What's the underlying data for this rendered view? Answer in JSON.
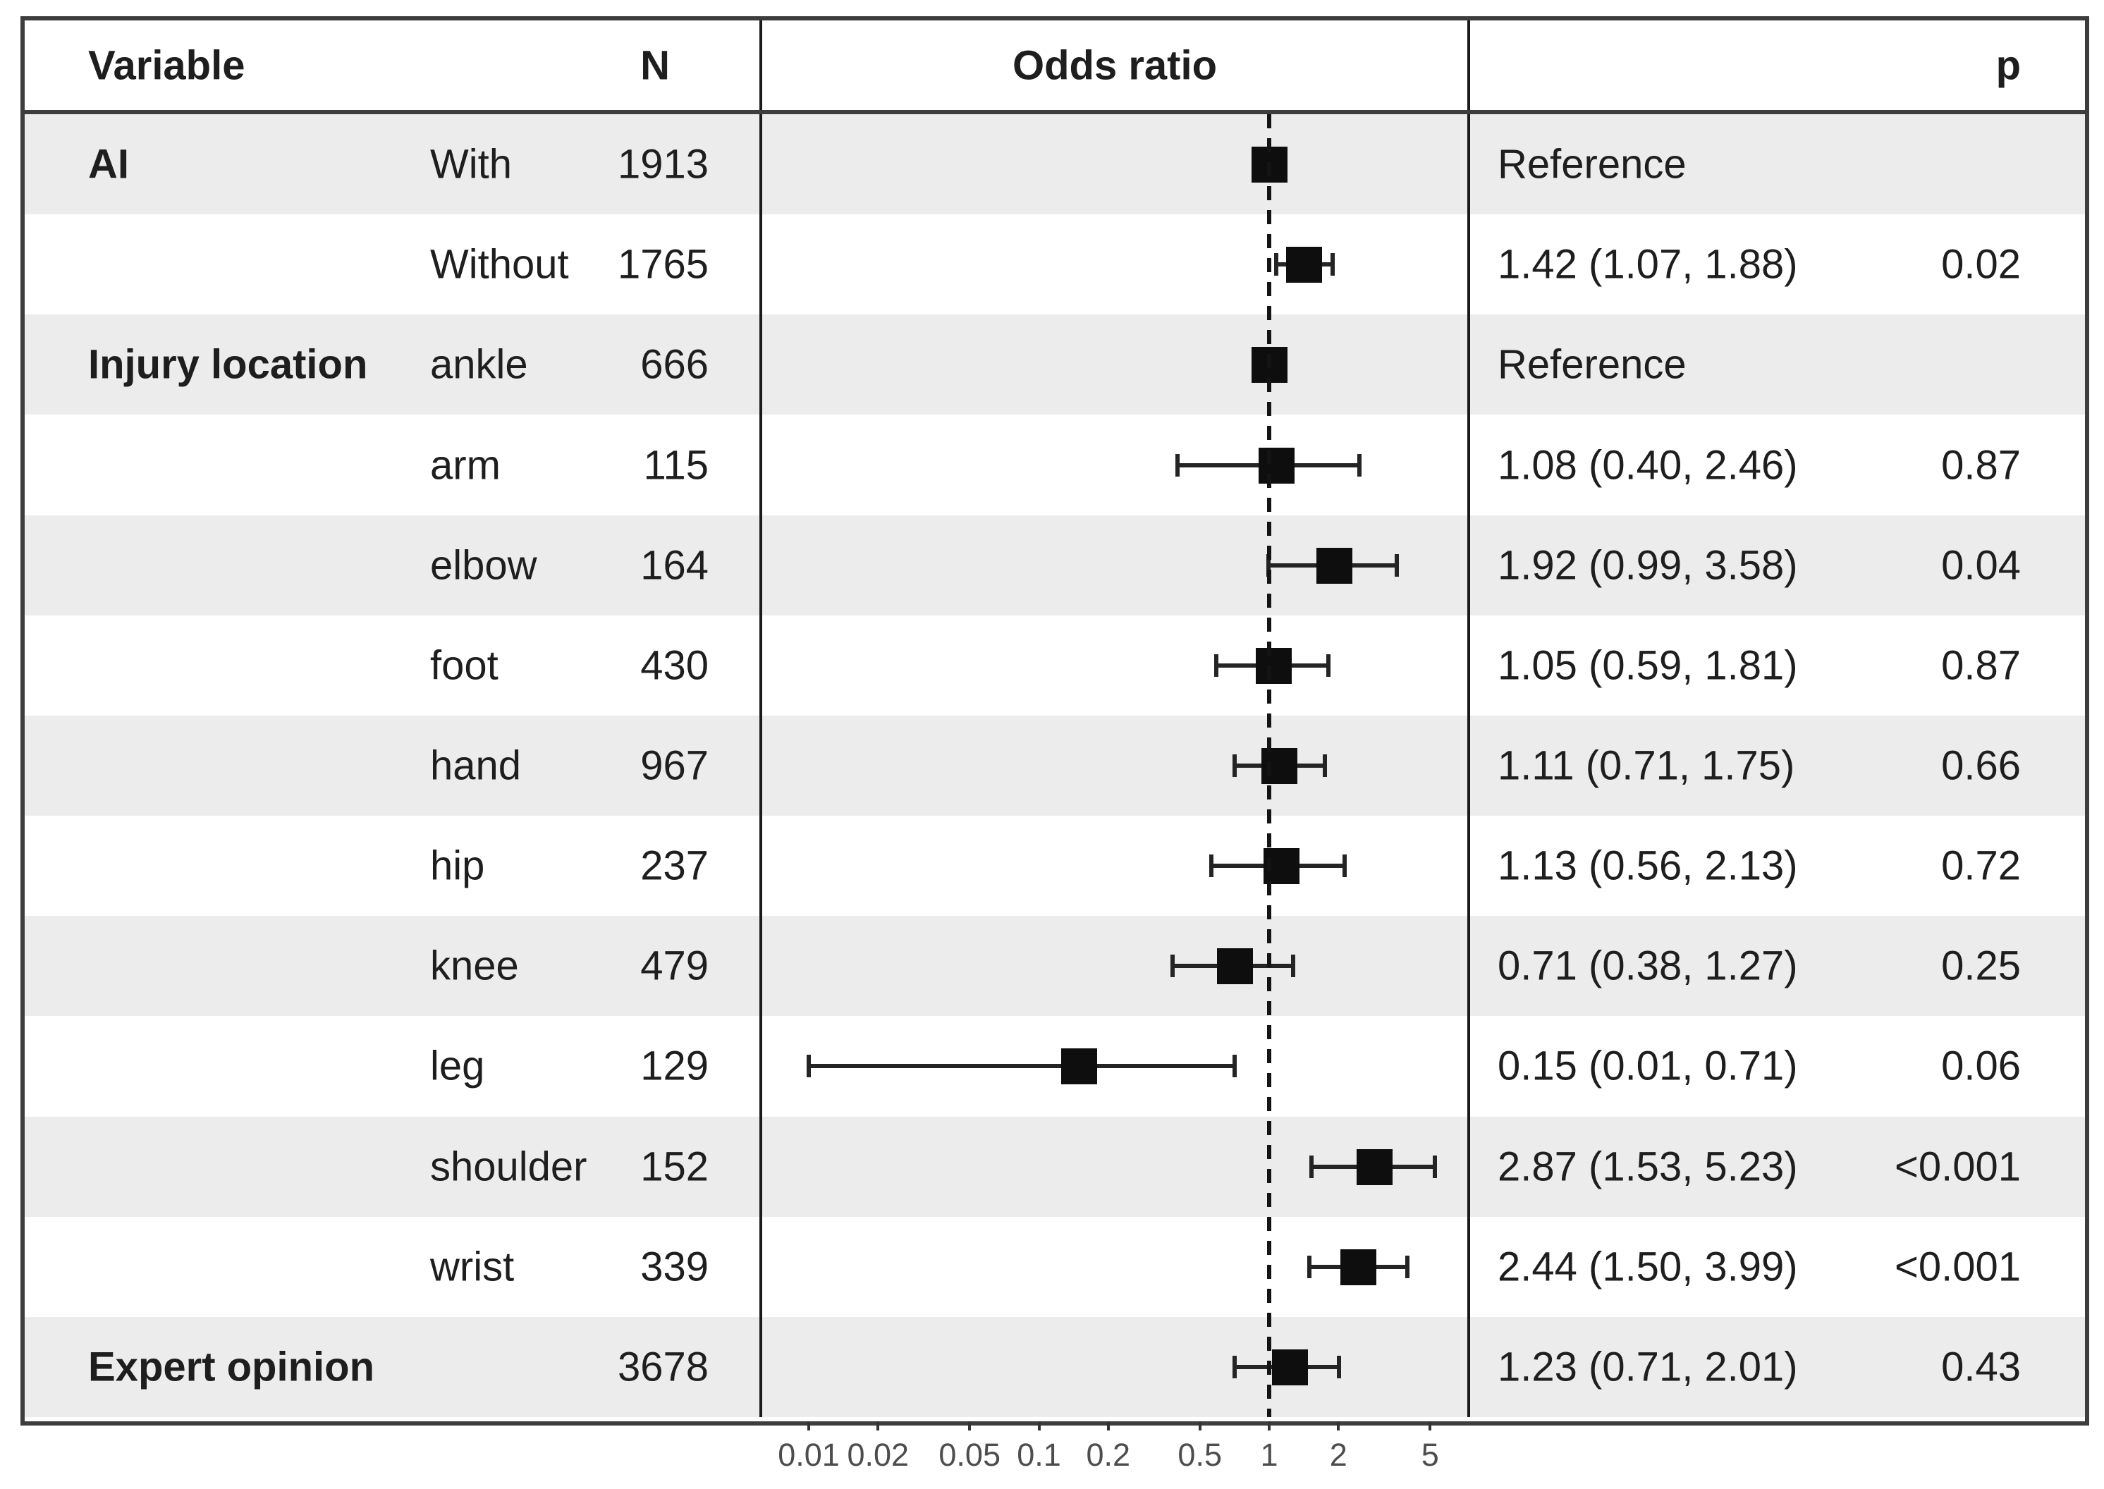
{
  "header": {
    "variable": "Variable",
    "n": "N",
    "odds_ratio": "Odds ratio",
    "p": "p"
  },
  "axis": {
    "scale": "log10",
    "tick_labels": [
      "0.01",
      "0.02",
      "0.05",
      "0.1",
      "0.2",
      "0.5",
      "1",
      "2",
      "5"
    ],
    "tick_values": [
      0.01,
      0.02,
      0.05,
      0.1,
      0.2,
      0.5,
      1,
      2,
      5
    ],
    "reference_line_at": 1,
    "range": [
      0.008,
      6
    ]
  },
  "colors": {
    "stripe": "#ececec",
    "outer_border": "#3d3d3d",
    "column_divider": "#1a1a1a",
    "marker": "#0e0e0e",
    "text": "#1e1e1e",
    "tick_text": "#4d4d4d",
    "background": "#ffffff"
  },
  "chart_data": {
    "type": "forest",
    "title": "",
    "rows": [
      {
        "variable": "AI",
        "level": "With",
        "n": "1913",
        "or": 1.0,
        "ci_low": null,
        "ci_high": null,
        "estimate": "Reference",
        "p": "",
        "reference": true
      },
      {
        "variable": "",
        "level": "Without",
        "n": "1765",
        "or": 1.42,
        "ci_low": 1.07,
        "ci_high": 1.88,
        "estimate": "1.42 (1.07, 1.88)",
        "p": "0.02",
        "reference": false
      },
      {
        "variable": "Injury location",
        "level": "ankle",
        "n": "666",
        "or": 1.0,
        "ci_low": null,
        "ci_high": null,
        "estimate": "Reference",
        "p": "",
        "reference": true
      },
      {
        "variable": "",
        "level": "arm",
        "n": "115",
        "or": 1.08,
        "ci_low": 0.4,
        "ci_high": 2.46,
        "estimate": "1.08 (0.40, 2.46)",
        "p": "0.87",
        "reference": false
      },
      {
        "variable": "",
        "level": "elbow",
        "n": "164",
        "or": 1.92,
        "ci_low": 0.99,
        "ci_high": 3.58,
        "estimate": "1.92 (0.99, 3.58)",
        "p": "0.04",
        "reference": false
      },
      {
        "variable": "",
        "level": "foot",
        "n": "430",
        "or": 1.05,
        "ci_low": 0.59,
        "ci_high": 1.81,
        "estimate": "1.05 (0.59, 1.81)",
        "p": "0.87",
        "reference": false
      },
      {
        "variable": "",
        "level": "hand",
        "n": "967",
        "or": 1.11,
        "ci_low": 0.71,
        "ci_high": 1.75,
        "estimate": "1.11 (0.71, 1.75)",
        "p": "0.66",
        "reference": false
      },
      {
        "variable": "",
        "level": "hip",
        "n": "237",
        "or": 1.13,
        "ci_low": 0.56,
        "ci_high": 2.13,
        "estimate": "1.13 (0.56, 2.13)",
        "p": "0.72",
        "reference": false
      },
      {
        "variable": "",
        "level": "knee",
        "n": "479",
        "or": 0.71,
        "ci_low": 0.38,
        "ci_high": 1.27,
        "estimate": "0.71 (0.38, 1.27)",
        "p": "0.25",
        "reference": false
      },
      {
        "variable": "",
        "level": "leg",
        "n": "129",
        "or": 0.15,
        "ci_low": 0.01,
        "ci_high": 0.71,
        "estimate": "0.15 (0.01, 0.71)",
        "p": "0.06",
        "reference": false
      },
      {
        "variable": "",
        "level": "shoulder",
        "n": "152",
        "or": 2.87,
        "ci_low": 1.53,
        "ci_high": 5.23,
        "estimate": "2.87 (1.53, 5.23)",
        "p": "<0.001",
        "reference": false
      },
      {
        "variable": "",
        "level": "wrist",
        "n": "339",
        "or": 2.44,
        "ci_low": 1.5,
        "ci_high": 3.99,
        "estimate": "2.44 (1.50, 3.99)",
        "p": "<0.001",
        "reference": false
      },
      {
        "variable": "Expert opinion",
        "level": "",
        "n": "3678",
        "or": 1.23,
        "ci_low": 0.71,
        "ci_high": 2.01,
        "estimate": "1.23 (0.71, 2.01)",
        "p": "0.43",
        "reference": false
      }
    ]
  }
}
